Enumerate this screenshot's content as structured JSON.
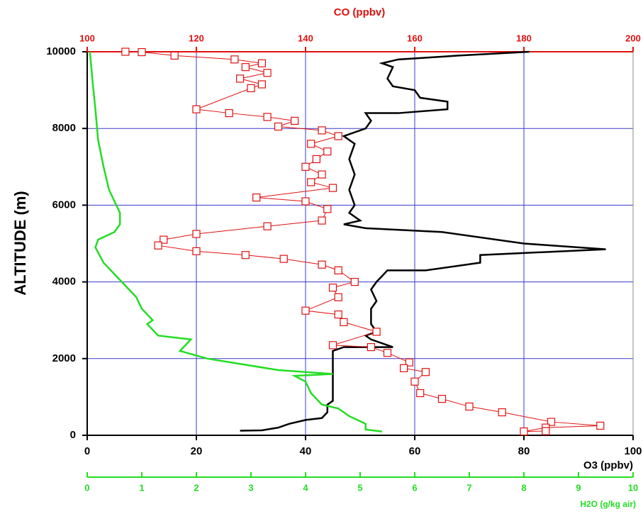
{
  "chart_data": {
    "type": "line",
    "ylabel": "ALTITUDE (m)",
    "ylim": [
      0,
      10000
    ],
    "yticks": [
      0,
      2000,
      4000,
      6000,
      8000,
      10000
    ],
    "xlabel": "O3 (ppbv)",
    "xlim": [
      0,
      100
    ],
    "xticks": [
      0,
      20,
      40,
      60,
      80,
      100
    ],
    "xcolor": "#000000",
    "x2label": "CO (ppbv)",
    "x2lim": [
      100,
      200
    ],
    "x2ticks": [
      100,
      120,
      140,
      160,
      180,
      200
    ],
    "x2color": "#e01010",
    "x3label": "H2O (g/kg air)",
    "x3lim": [
      0,
      10
    ],
    "x3ticks": [
      0,
      1,
      2,
      3,
      4,
      5,
      6,
      7,
      8,
      9,
      10
    ],
    "x3color": "#22dd22",
    "grid": true,
    "grid_color": "#3a3acc",
    "series": [
      {
        "axis": "x",
        "color": "#000000",
        "marker": "none",
        "values": [
          28,
          32,
          35,
          37,
          40,
          43,
          44,
          44,
          45,
          45,
          45,
          47,
          56,
          52,
          51,
          53,
          52,
          52,
          53,
          52,
          53,
          55,
          62,
          72,
          72,
          95,
          80,
          65,
          51,
          47,
          50,
          48,
          49,
          48,
          49,
          48,
          49,
          47,
          51,
          52,
          51,
          57,
          66,
          66,
          61,
          60,
          56,
          55,
          56,
          54,
          57,
          68,
          81
        ],
        "altitude": [
          120,
          130,
          200,
          300,
          400,
          450,
          600,
          800,
          900,
          1600,
          2200,
          2300,
          2300,
          2500,
          2600,
          2700,
          2900,
          3300,
          3500,
          3800,
          4000,
          4300,
          4300,
          4500,
          4700,
          4850,
          5000,
          5300,
          5400,
          5500,
          5600,
          5800,
          6000,
          6400,
          6800,
          7200,
          7600,
          7800,
          8000,
          8200,
          8400,
          8400,
          8500,
          8700,
          8800,
          9000,
          9100,
          9300,
          9600,
          9700,
          9800,
          9900,
          10000
        ]
      },
      {
        "axis": "x2",
        "color": "#e01010",
        "marker": "square",
        "values": [
          107,
          110,
          116,
          127,
          132,
          129,
          133,
          128,
          132,
          130,
          120,
          126,
          133,
          138,
          135,
          143,
          146,
          141,
          144,
          142,
          140,
          143,
          141,
          145,
          131,
          140,
          144,
          143,
          133,
          120,
          114,
          113,
          120,
          129,
          136,
          143,
          146,
          149,
          145,
          146,
          140,
          146,
          147,
          153,
          145,
          152,
          155,
          159,
          158,
          162,
          160,
          161,
          165,
          170,
          176,
          185,
          194,
          184,
          180,
          184
        ],
        "altitude": [
          10000,
          9990,
          9900,
          9800,
          9700,
          9600,
          9450,
          9300,
          9150,
          9050,
          8500,
          8400,
          8300,
          8200,
          8050,
          7950,
          7800,
          7600,
          7400,
          7200,
          7000,
          6800,
          6600,
          6450,
          6200,
          6100,
          5900,
          5600,
          5450,
          5250,
          5100,
          4950,
          4800,
          4700,
          4600,
          4450,
          4300,
          4000,
          3850,
          3600,
          3250,
          3150,
          2950,
          2700,
          2350,
          2300,
          2150,
          1900,
          1750,
          1650,
          1400,
          1100,
          950,
          750,
          600,
          350,
          250,
          200,
          100,
          110
        ]
      },
      {
        "axis": "x3",
        "color": "#22dd22",
        "marker": "none",
        "values": [
          5.4,
          5.1,
          5.1,
          4.8,
          4.6,
          4.3,
          4.1,
          4.0,
          3.8,
          4.5,
          3.5,
          2.2,
          1.7,
          1.9,
          1.3,
          1.1,
          1.2,
          1.0,
          0.9,
          0.7,
          0.5,
          0.3,
          0.15,
          0.2,
          0.5,
          0.6,
          0.6,
          0.5,
          0.4,
          0.3,
          0.2,
          0.15,
          0.1,
          0.05
        ],
        "altitude": [
          100,
          150,
          300,
          500,
          700,
          800,
          1100,
          1400,
          1550,
          1600,
          1700,
          2000,
          2200,
          2500,
          2600,
          2900,
          3000,
          3300,
          3600,
          3900,
          4200,
          4500,
          4900,
          5100,
          5300,
          5500,
          5800,
          6100,
          6400,
          7000,
          7700,
          8500,
          9200,
          10000
        ]
      }
    ]
  }
}
